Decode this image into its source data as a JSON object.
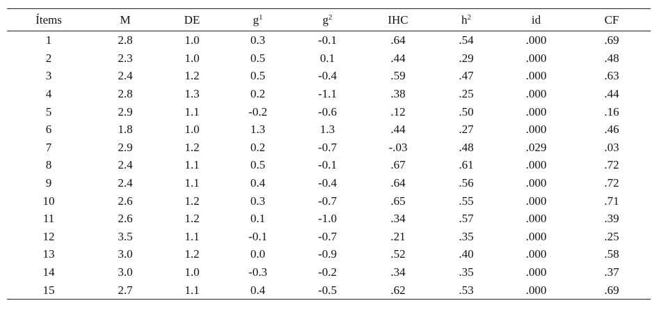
{
  "table": {
    "header": [
      {
        "text": "Ítems"
      },
      {
        "text": "M"
      },
      {
        "text": "DE"
      },
      {
        "text": "g",
        "sup": "1"
      },
      {
        "text": "g",
        "sup": "2"
      },
      {
        "text": "IHC"
      },
      {
        "text": "h",
        "sup": "2"
      },
      {
        "text": "id"
      },
      {
        "text": "CF"
      }
    ],
    "rows": [
      [
        "1",
        "2.8",
        "1.0",
        "0.3",
        "-0.1",
        ".64",
        ".54",
        ".000",
        ".69"
      ],
      [
        "2",
        "2.3",
        "1.0",
        "0.5",
        "0.1",
        ".44",
        ".29",
        ".000",
        ".48"
      ],
      [
        "3",
        "2.4",
        "1.2",
        "0.5",
        "-0.4",
        ".59",
        ".47",
        ".000",
        ".63"
      ],
      [
        "4",
        "2.8",
        "1.3",
        "0.2",
        "-1.1",
        ".38",
        ".25",
        ".000",
        ".44"
      ],
      [
        "5",
        "2.9",
        "1.1",
        "-0.2",
        "-0.6",
        ".12",
        ".50",
        ".000",
        ".16"
      ],
      [
        "6",
        "1.8",
        "1.0",
        "1.3",
        "1.3",
        ".44",
        ".27",
        ".000",
        ".46"
      ],
      [
        "7",
        "2.9",
        "1.2",
        "0.2",
        "-0.7",
        "-.03",
        ".48",
        ".029",
        ".03"
      ],
      [
        "8",
        "2.4",
        "1.1",
        "0.5",
        "-0.1",
        ".67",
        ".61",
        ".000",
        ".72"
      ],
      [
        "9",
        "2.4",
        "1.1",
        "0.4",
        "-0.4",
        ".64",
        ".56",
        ".000",
        ".72"
      ],
      [
        "10",
        "2.6",
        "1.2",
        "0.3",
        "-0.7",
        ".65",
        ".55",
        ".000",
        ".71"
      ],
      [
        "11",
        "2.6",
        "1.2",
        "0.1",
        "-1.0",
        ".34",
        ".57",
        ".000",
        ".39"
      ],
      [
        "12",
        "3.5",
        "1.1",
        "-0.1",
        "-0.7",
        ".21",
        ".35",
        ".000",
        ".25"
      ],
      [
        "13",
        "3.0",
        "1.2",
        "0.0",
        "-0.9",
        ".52",
        ".40",
        ".000",
        ".58"
      ],
      [
        "14",
        "3.0",
        "1.0",
        "-0.3",
        "-0.2",
        ".34",
        ".35",
        ".000",
        ".37"
      ],
      [
        "15",
        "2.7",
        "1.1",
        "0.4",
        "-0.5",
        ".62",
        ".53",
        ".000",
        ".69"
      ]
    ]
  }
}
